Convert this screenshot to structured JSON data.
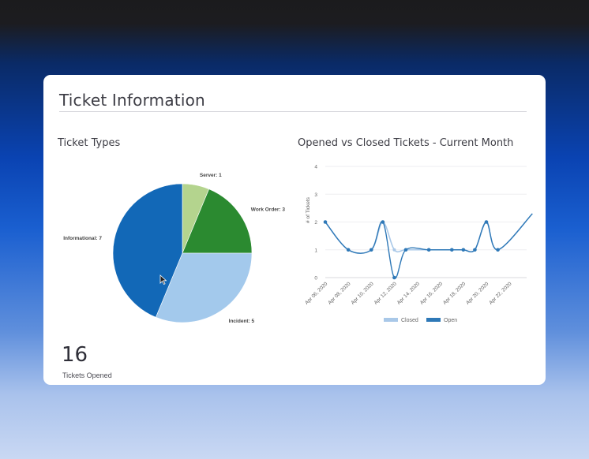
{
  "card": {
    "title": "Ticket Information"
  },
  "kpi": {
    "value": "16",
    "label": "Tickets Opened"
  },
  "chart_data": [
    {
      "type": "pie",
      "title": "Ticket Types",
      "slices": [
        {
          "label": "Server: 1",
          "category": "Server",
          "value": 1,
          "color": "#b4d48e"
        },
        {
          "label": "Work Order: 3",
          "category": "Work Order",
          "value": 3,
          "color": "#2b8a30"
        },
        {
          "label": "Incident: 5",
          "category": "Incident",
          "value": 5,
          "color": "#a3c9ec"
        },
        {
          "label": "Informational: 7",
          "category": "Informational",
          "value": 7,
          "color": "#1268b7"
        }
      ]
    },
    {
      "type": "line",
      "title": "Opened vs Closed Tickets - Current Month",
      "ylabel": "# of Tickets",
      "ylim": [
        0,
        4
      ],
      "yticks": [
        "0",
        "1",
        "2",
        "3",
        "4"
      ],
      "grid": true,
      "legend": "bottom",
      "xticks": [
        "Apr 06, 2020",
        "Apr 08, 2020",
        "Apr 10, 2020",
        "Apr 12, 2020",
        "Apr 14, 2020",
        "Apr 16, 2020",
        "Apr 18, 2020",
        "Apr 20, 2020",
        "Apr 22, 2020"
      ],
      "x": [
        "Apr 06, 2020",
        "Apr 08, 2020",
        "Apr 10, 2020",
        "Apr 11, 2020",
        "Apr 12, 2020",
        "Apr 13, 2020",
        "Apr 15, 2020",
        "Apr 17, 2020",
        "Apr 18, 2020",
        "Apr 19, 2020",
        "Apr 20, 2020",
        "Apr 21, 2020",
        "Apr 24, 2020"
      ],
      "series": [
        {
          "name": "Closed",
          "color": "#a9c8e8",
          "values": [
            2,
            1,
            1,
            2,
            1,
            1,
            1,
            1,
            1,
            1,
            2,
            1,
            2.3
          ]
        },
        {
          "name": "Open",
          "color": "#2e78b7",
          "values": [
            2,
            1,
            1,
            2,
            0,
            1,
            1,
            1,
            1,
            1,
            2,
            1,
            2.3
          ]
        }
      ]
    }
  ]
}
